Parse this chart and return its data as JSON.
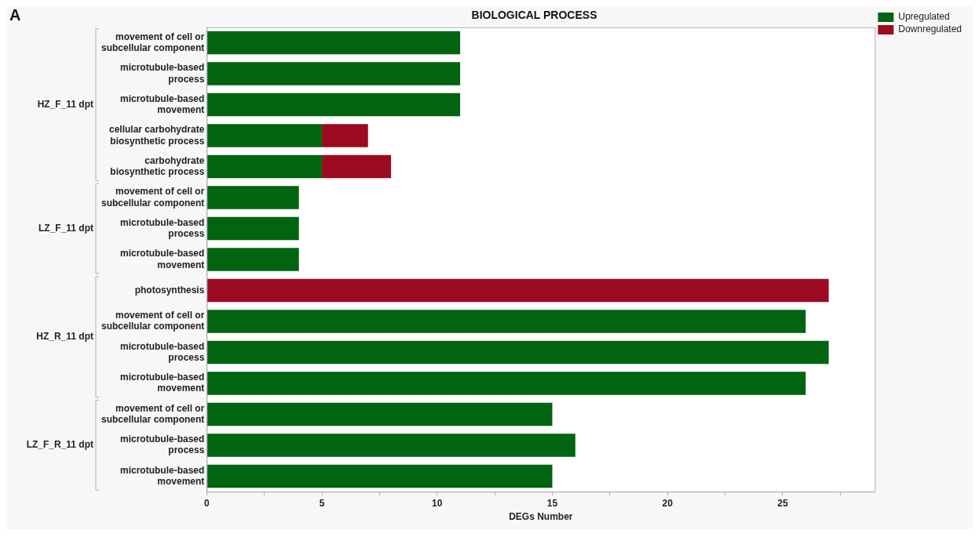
{
  "chart_data": {
    "type": "bar",
    "title": "BIOLOGICAL PROCESS",
    "xlabel": "DEGs Number",
    "orientation": "horizontal",
    "stacked": true,
    "legend": "top right",
    "grid": false,
    "categories": [
      "movement of cell or subcellular component",
      "microtubule-based process",
      "microtubule-based movement",
      "cellular carbohydrate biosynthetic process",
      "carbohydrate biosynthetic process",
      "movement of cell or subcellular component",
      "microtubule-based process",
      "microtubule-based movement",
      "photosynthesis",
      "movement of cell or subcellular component",
      "microtubule-based process",
      "microtubule-based movement",
      "movement of cell or subcellular component",
      "microtubule-based process",
      "microtubule-based movement"
    ],
    "series": [
      {
        "name": "Upregulated",
        "color": "#006410",
        "values": [
          11,
          11,
          11,
          5,
          5,
          4,
          4,
          4,
          null,
          26,
          27,
          26,
          15,
          16,
          15
        ]
      },
      {
        "name": "Downregulated",
        "color": "#9b0a20",
        "values": [
          null,
          null,
          null,
          2,
          3,
          null,
          null,
          null,
          27,
          null,
          null,
          null,
          null,
          null,
          null
        ]
      }
    ],
    "xlim": [
      0,
      29
    ],
    "xticks": [
      0,
      {
        "value": 2.5,
        "label": null
      },
      5,
      {
        "value": 7.5,
        "label": null
      },
      10,
      {
        "value": 12.5,
        "label": null
      },
      15,
      {
        "value": 17.5,
        "label": null
      },
      20,
      {
        "value": 22.5,
        "label": null
      },
      25,
      {
        "value": 27.5,
        "label": null
      }
    ],
    "annotations": [
      "A",
      "HZ_F_11 dpt",
      "LZ_F_11 dpt",
      "HZ_R_11 dpt",
      "LZ_F_R_11 dpt"
    ]
  }
}
